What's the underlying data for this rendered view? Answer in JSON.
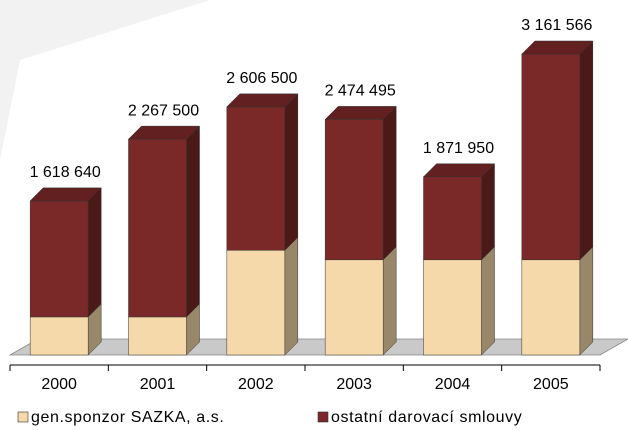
{
  "chart_data": {
    "type": "bar3d-stacked",
    "categories": [
      "2000",
      "2001",
      "2002",
      "2003",
      "2004",
      "2005"
    ],
    "series": [
      {
        "name": "gen.sponzor SAZKA, a.s.",
        "color": "#f6d9aa",
        "values": [
          400000,
          400000,
          1100000,
          1000000,
          1000000,
          1000000
        ]
      },
      {
        "name": "ostatní darovací smlouvy",
        "color": "#7a2828",
        "values": [
          1218640,
          1867500,
          1506500,
          1474495,
          871950,
          2161566
        ]
      }
    ],
    "totals": [
      1618640,
      2267500,
      2606500,
      2474495,
      1871950,
      3161566
    ],
    "total_labels": [
      "1 618 640",
      "2 267 500",
      "2 606 500",
      "2 474 495",
      "1 871 950",
      "3 161 566"
    ],
    "legend": "bottom"
  }
}
